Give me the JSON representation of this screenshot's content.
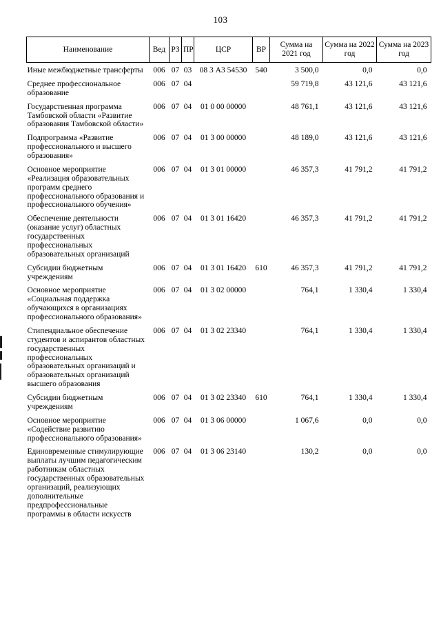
{
  "page": {
    "number": "103"
  },
  "table": {
    "headers": [
      "Наименование",
      "Вед",
      "РЗ",
      "ПР",
      "ЦСР",
      "ВР",
      "Сумма на 2021 год",
      "Сумма на 2022 год",
      "Сумма на 2023 год"
    ],
    "rows": [
      {
        "name": "Иные межбюджетные трансферты",
        "ved": "006",
        "rz": "07",
        "pr": "03",
        "csr": "08 3 А3 54530",
        "vr": "540",
        "y2021": "3 500,0",
        "y2022": "0,0",
        "y2023": "0,0"
      },
      {
        "name": "Среднее профессиональное образование",
        "ved": "006",
        "rz": "07",
        "pr": "04",
        "csr": "",
        "vr": "",
        "y2021": "59 719,8",
        "y2022": "43 121,6",
        "y2023": "43 121,6"
      },
      {
        "name": "Государственная программа Тамбовской области «Развитие образования Тамбовской области»",
        "ved": "006",
        "rz": "07",
        "pr": "04",
        "csr": "01 0 00 00000",
        "vr": "",
        "y2021": "48 761,1",
        "y2022": "43 121,6",
        "y2023": "43 121,6"
      },
      {
        "name": "Подпрограмма «Развитие профессионального и высшего образования»",
        "ved": "006",
        "rz": "07",
        "pr": "04",
        "csr": "01 3 00 00000",
        "vr": "",
        "y2021": "48 189,0",
        "y2022": "43 121,6",
        "y2023": "43 121,6"
      },
      {
        "name": "Основное мероприятие «Реализация образовательных программ среднего профессионального образования и профессионального обучения»",
        "ved": "006",
        "rz": "07",
        "pr": "04",
        "csr": "01 3 01 00000",
        "vr": "",
        "y2021": "46 357,3",
        "y2022": "41 791,2",
        "y2023": "41 791,2"
      },
      {
        "name": "Обеспечение деятельности (оказание услуг) областных государственных профессиональных образовательных организаций",
        "ved": "006",
        "rz": "07",
        "pr": "04",
        "csr": "01 3 01 16420",
        "vr": "",
        "y2021": "46 357,3",
        "y2022": "41 791,2",
        "y2023": "41 791,2"
      },
      {
        "name": "Субсидии бюджетным учреждениям",
        "ved": "006",
        "rz": "07",
        "pr": "04",
        "csr": "01 3 01 16420",
        "vr": "610",
        "y2021": "46 357,3",
        "y2022": "41 791,2",
        "y2023": "41 791,2"
      },
      {
        "name": "Основное мероприятие «Социальная поддержка обучающихся в организациях профессионального образования»",
        "ved": "006",
        "rz": "07",
        "pr": "04",
        "csr": "01 3 02 00000",
        "vr": "",
        "y2021": "764,1",
        "y2022": "1 330,4",
        "y2023": "1 330,4"
      },
      {
        "name": "Стипендиальное обеспечение студентов и аспирантов областных государственных профессиональных образовательных организаций и образовательных организаций высшего образования",
        "ved": "006",
        "rz": "07",
        "pr": "04",
        "csr": "01 3 02 23340",
        "vr": "",
        "y2021": "764,1",
        "y2022": "1 330,4",
        "y2023": "1 330,4"
      },
      {
        "name": "Субсидии бюджетным учреждениям",
        "ved": "006",
        "rz": "07",
        "pr": "04",
        "csr": "01 3 02 23340",
        "vr": "610",
        "y2021": "764,1",
        "y2022": "1 330,4",
        "y2023": "1 330,4"
      },
      {
        "name": "Основное мероприятие «Содействие развитию профессионального образования»",
        "ved": "006",
        "rz": "07",
        "pr": "04",
        "csr": "01 3 06 00000",
        "vr": "",
        "y2021": "1 067,6",
        "y2022": "0,0",
        "y2023": "0,0"
      },
      {
        "name": "Единовременные стимулирующие выплаты лучшим педагогическим работникам областных государственных образовательных организаций, реализующих дополнительные предпрофессиональные программы в области искусств",
        "ved": "006",
        "rz": "07",
        "pr": "04",
        "csr": "01 3 06 23140",
        "vr": "",
        "y2021": "130,2",
        "y2022": "0,0",
        "y2023": "0,0"
      }
    ]
  }
}
